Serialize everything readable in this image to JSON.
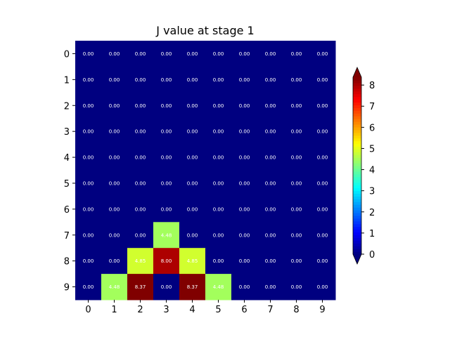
{
  "chart_data": {
    "type": "heatmap",
    "title": "J value at stage 1",
    "x_categories": [
      "0",
      "1",
      "2",
      "3",
      "4",
      "5",
      "6",
      "7",
      "8",
      "9"
    ],
    "y_categories": [
      "0",
      "1",
      "2",
      "3",
      "4",
      "5",
      "6",
      "7",
      "8",
      "9"
    ],
    "values": [
      [
        0,
        0,
        0,
        0,
        0,
        0,
        0,
        0,
        0,
        0
      ],
      [
        0,
        0,
        0,
        0,
        0,
        0,
        0,
        0,
        0,
        0
      ],
      [
        0,
        0,
        0,
        0,
        0,
        0,
        0,
        0,
        0,
        0
      ],
      [
        0,
        0,
        0,
        0,
        0,
        0,
        0,
        0,
        0,
        0
      ],
      [
        0,
        0,
        0,
        0,
        0,
        0,
        0,
        0,
        0,
        0
      ],
      [
        0,
        0,
        0,
        0,
        0,
        0,
        0,
        0,
        0,
        0
      ],
      [
        0,
        0,
        0,
        0,
        0,
        0,
        0,
        0,
        0,
        0
      ],
      [
        0,
        0,
        0,
        4.48,
        0,
        0,
        0,
        0,
        0,
        0
      ],
      [
        0,
        0,
        4.85,
        8.0,
        4.85,
        0,
        0,
        0,
        0,
        0
      ],
      [
        0,
        4.48,
        8.37,
        0,
        8.37,
        4.48,
        0,
        0,
        0,
        0
      ]
    ],
    "cell_labels": [
      [
        "0.00",
        "0.00",
        "0.00",
        "0.00",
        "0.00",
        "0.00",
        "0.00",
        "0.00",
        "0.00",
        "0.00"
      ],
      [
        "0.00",
        "0.00",
        "0.00",
        "0.00",
        "0.00",
        "0.00",
        "0.00",
        "0.00",
        "0.00",
        "0.00"
      ],
      [
        "0.00",
        "0.00",
        "0.00",
        "0.00",
        "0.00",
        "0.00",
        "0.00",
        "0.00",
        "0.00",
        "0.00"
      ],
      [
        "0.00",
        "0.00",
        "0.00",
        "0.00",
        "0.00",
        "0.00",
        "0.00",
        "0.00",
        "0.00",
        "0.00"
      ],
      [
        "0.00",
        "0.00",
        "0.00",
        "0.00",
        "0.00",
        "0.00",
        "0.00",
        "0.00",
        "0.00",
        "0.00"
      ],
      [
        "0.00",
        "0.00",
        "0.00",
        "0.00",
        "0.00",
        "0.00",
        "0.00",
        "0.00",
        "0.00",
        "0.00"
      ],
      [
        "0.00",
        "0.00",
        "0.00",
        "0.00",
        "0.00",
        "0.00",
        "0.00",
        "0.00",
        "0.00",
        "0.00"
      ],
      [
        "0.00",
        "0.00",
        "0.00",
        "4.48",
        "0.00",
        "0.00",
        "0.00",
        "0.00",
        "0.00",
        "0.00"
      ],
      [
        "0.00",
        "0.00",
        "4.85",
        "8.00",
        "4.85",
        "0.00",
        "0.00",
        "0.00",
        "0.00",
        "0.00"
      ],
      [
        "0.00",
        "4.48",
        "8.37",
        "0.00",
        "8.37",
        "4.48",
        "0.00",
        "0.00",
        "0.00",
        "0.00"
      ]
    ],
    "colormap": "jet",
    "vmin": 0,
    "vmax": 8.37,
    "colorbar": {
      "ticks": [
        "0",
        "1",
        "2",
        "3",
        "4",
        "5",
        "6",
        "7",
        "8"
      ],
      "extend": "both",
      "placement": "right"
    },
    "grid": false
  }
}
